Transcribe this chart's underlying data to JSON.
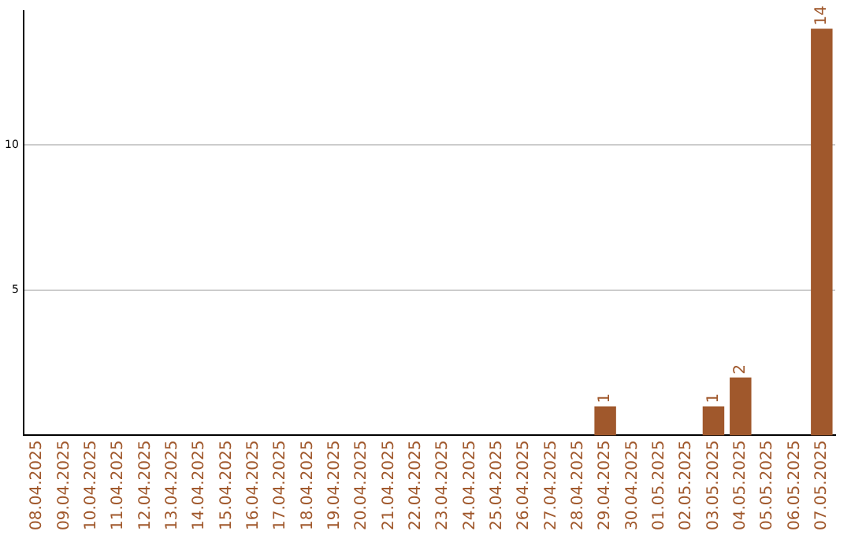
{
  "chart_data": {
    "type": "bar",
    "categories": [
      "08.04.2025",
      "09.04.2025",
      "10.04.2025",
      "11.04.2025",
      "12.04.2025",
      "13.04.2025",
      "14.04.2025",
      "15.04.2025",
      "16.04.2025",
      "17.04.2025",
      "18.04.2025",
      "19.04.2025",
      "20.04.2025",
      "21.04.2025",
      "22.04.2025",
      "23.04.2025",
      "24.04.2025",
      "25.04.2025",
      "26.04.2025",
      "27.04.2025",
      "28.04.2025",
      "29.04.2025",
      "30.04.2025",
      "01.05.2025",
      "02.05.2025",
      "03.05.2025",
      "04.05.2025",
      "05.05.2025",
      "06.05.2025",
      "07.05.2025"
    ],
    "values": [
      0,
      0,
      0,
      0,
      0,
      0,
      0,
      0,
      0,
      0,
      0,
      0,
      0,
      0,
      0,
      0,
      0,
      0,
      0,
      0,
      0,
      1,
      0,
      0,
      0,
      1,
      2,
      0,
      0,
      14
    ],
    "value_labels": [
      null,
      null,
      null,
      null,
      null,
      null,
      null,
      null,
      null,
      null,
      null,
      null,
      null,
      null,
      null,
      null,
      null,
      null,
      null,
      null,
      null,
      "1",
      null,
      null,
      null,
      "1",
      "2",
      null,
      null,
      "14"
    ],
    "color": "#a0582c",
    "ylim": [
      0,
      14.6
    ],
    "yticks": [
      5,
      10
    ],
    "grid": "y"
  }
}
